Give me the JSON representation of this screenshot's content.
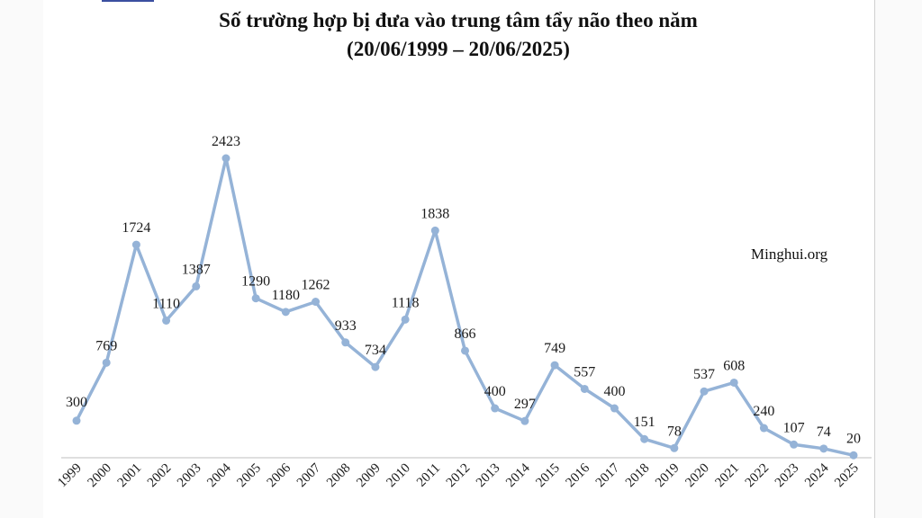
{
  "title_line1": "Số trường hợp bị đưa vào trung tâm tẩy não theo năm",
  "title_line2": "(20/06/1999 – 20/06/2025)",
  "watermark": "Minghui.org",
  "colors": {
    "line": "#95b3d7",
    "point": "#95b3d7",
    "text": "#1a1a1a",
    "axis": "#bfbfbf"
  },
  "chart_data": {
    "type": "line",
    "title": "Số trường hợp bị đưa vào trung tâm tẩy não theo năm (20/06/1999 – 20/06/2025)",
    "categories": [
      "1999",
      "2000",
      "2001",
      "2002",
      "2003",
      "2004",
      "2005",
      "2006",
      "2007",
      "2008",
      "2009",
      "2010",
      "2011",
      "2012",
      "2013",
      "2014",
      "2015",
      "2016",
      "2017",
      "2018",
      "2019",
      "2020",
      "2021",
      "2022",
      "2023",
      "2024",
      "2025"
    ],
    "values": [
      300,
      769,
      1724,
      1110,
      1387,
      2423,
      1290,
      1180,
      1262,
      933,
      734,
      1118,
      1838,
      866,
      400,
      297,
      749,
      557,
      400,
      151,
      78,
      537,
      608,
      240,
      107,
      74,
      20
    ],
    "ylim": [
      0,
      2600
    ],
    "grid": false,
    "data_labels": true
  }
}
